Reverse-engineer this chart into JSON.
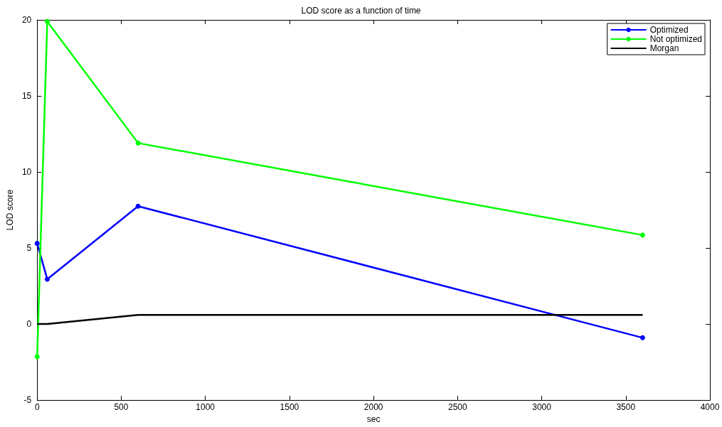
{
  "chart_data": {
    "type": "line",
    "title": "LOD score as a function of time",
    "xlabel": "sec",
    "ylabel": "LOD score",
    "xlim": [
      0,
      4000
    ],
    "xticks": [
      0,
      500,
      1000,
      1500,
      2000,
      2500,
      3000,
      3500,
      4000
    ],
    "ylim": [
      -5,
      20
    ],
    "yticks": [
      -5,
      0,
      5,
      10,
      15,
      20
    ],
    "legend": "top right",
    "series": [
      {
        "name": "Optimized",
        "color": "#0000ff",
        "marker": "circle",
        "x": [
          0,
          60,
          600,
          3600
        ],
        "values": [
          5.3,
          2.95,
          7.75,
          -0.9
        ]
      },
      {
        "name": "Not optimized",
        "color": "#00ff00",
        "marker": "circle",
        "x": [
          0,
          60,
          600,
          3600
        ],
        "values": [
          -2.15,
          19.9,
          11.9,
          5.85
        ]
      },
      {
        "name": "Morgan",
        "color": "#000000",
        "marker": "none",
        "x": [
          0,
          60,
          600,
          3600
        ],
        "values": [
          0,
          0,
          0.6,
          0.6
        ]
      }
    ]
  }
}
